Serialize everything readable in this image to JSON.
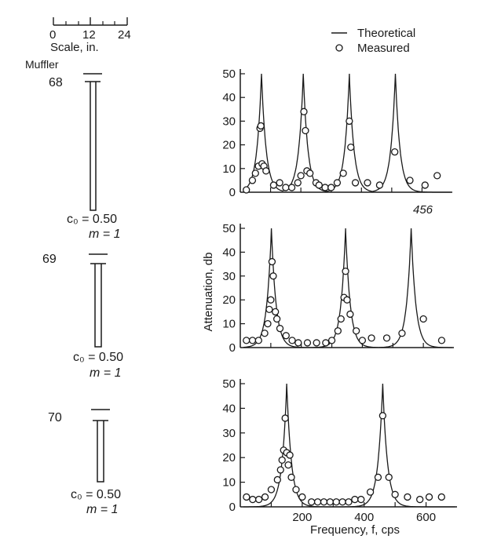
{
  "scale": {
    "ticks": [
      "0",
      "12",
      "24"
    ],
    "label": "Scale, in."
  },
  "muffler_heading": "Muffler",
  "legend": {
    "theoretical": "Theoretical",
    "measured": "Measured"
  },
  "annotation": "456",
  "mufflers": [
    {
      "id": "68",
      "c0": "c₀ = 0.50",
      "m": "m = 1"
    },
    {
      "id": "69",
      "c0": "c₀ = 0.50",
      "m": "m = 1"
    },
    {
      "id": "70",
      "c0": "c₀ = 0.50",
      "m": "m = 1"
    }
  ],
  "chart_data": [
    {
      "type": "line",
      "muffler": "68",
      "xlim": [
        0,
        700
      ],
      "ylim": [
        0,
        50
      ],
      "yticks": [
        "0",
        "10",
        "20",
        "30",
        "40",
        "50"
      ],
      "grid": false,
      "series": [
        {
          "name": "Theoretical",
          "kind": "line",
          "resonances": [
            [
              70,
              50
            ],
            [
              208,
              50
            ],
            [
              360,
              50
            ],
            [
              512,
              50
            ]
          ]
        },
        {
          "name": "Measured",
          "kind": "scatter",
          "points": [
            [
              20,
              1
            ],
            [
              40,
              5
            ],
            [
              50,
              8
            ],
            [
              60,
              11
            ],
            [
              65,
              27
            ],
            [
              68,
              28
            ],
            [
              72,
              12
            ],
            [
              78,
              11
            ],
            [
              85,
              9
            ],
            [
              110,
              3
            ],
            [
              130,
              4
            ],
            [
              150,
              2
            ],
            [
              170,
              2
            ],
            [
              190,
              4
            ],
            [
              200,
              7
            ],
            [
              210,
              34
            ],
            [
              215,
              26
            ],
            [
              220,
              9
            ],
            [
              230,
              8
            ],
            [
              250,
              4
            ],
            [
              260,
              3
            ],
            [
              280,
              2
            ],
            [
              300,
              2
            ],
            [
              320,
              4
            ],
            [
              340,
              8
            ],
            [
              360,
              30
            ],
            [
              365,
              19
            ],
            [
              380,
              4
            ],
            [
              420,
              4
            ],
            [
              460,
              3
            ],
            [
              510,
              17
            ],
            [
              560,
              5
            ],
            [
              610,
              3
            ],
            [
              650,
              7
            ]
          ]
        }
      ]
    },
    {
      "type": "line",
      "muffler": "69",
      "xlim": [
        0,
        700
      ],
      "ylim": [
        0,
        50
      ],
      "yticks": [
        "0",
        "10",
        "20",
        "30",
        "40",
        "50"
      ],
      "ylabel": "Attenuation, db",
      "grid": false,
      "series": [
        {
          "name": "Theoretical",
          "kind": "line",
          "resonances": [
            [
              102,
              50
            ],
            [
              345,
              50
            ],
            [
              560,
              50
            ]
          ]
        },
        {
          "name": "Measured",
          "kind": "scatter",
          "points": [
            [
              20,
              3
            ],
            [
              40,
              3
            ],
            [
              60,
              3
            ],
            [
              80,
              6
            ],
            [
              90,
              10
            ],
            [
              95,
              16
            ],
            [
              100,
              20
            ],
            [
              104,
              36
            ],
            [
              108,
              30
            ],
            [
              115,
              15
            ],
            [
              120,
              12
            ],
            [
              130,
              8
            ],
            [
              150,
              5
            ],
            [
              170,
              3
            ],
            [
              190,
              2
            ],
            [
              220,
              2
            ],
            [
              250,
              2
            ],
            [
              280,
              2
            ],
            [
              300,
              3
            ],
            [
              320,
              7
            ],
            [
              330,
              12
            ],
            [
              340,
              21
            ],
            [
              345,
              32
            ],
            [
              350,
              20
            ],
            [
              360,
              14
            ],
            [
              380,
              7
            ],
            [
              400,
              3
            ],
            [
              430,
              4
            ],
            [
              480,
              4
            ],
            [
              530,
              6
            ],
            [
              600,
              12
            ],
            [
              660,
              3
            ]
          ]
        }
      ]
    },
    {
      "type": "line",
      "muffler": "70",
      "xlim": [
        0,
        700
      ],
      "ylim": [
        0,
        50
      ],
      "yticks": [
        "0",
        "10",
        "20",
        "30",
        "40",
        "50"
      ],
      "xticks": [
        "200",
        "400",
        "600"
      ],
      "xlabel": "Frequency, f, cps",
      "grid": false,
      "series": [
        {
          "name": "Theoretical",
          "kind": "line",
          "resonances": [
            [
              150,
              50
            ],
            [
              460,
              50
            ]
          ]
        },
        {
          "name": "Measured",
          "kind": "scatter",
          "points": [
            [
              20,
              4
            ],
            [
              40,
              3
            ],
            [
              60,
              3
            ],
            [
              80,
              4
            ],
            [
              100,
              7
            ],
            [
              120,
              11
            ],
            [
              130,
              15
            ],
            [
              135,
              19
            ],
            [
              140,
              23
            ],
            [
              145,
              36
            ],
            [
              150,
              22
            ],
            [
              155,
              17
            ],
            [
              160,
              21
            ],
            [
              165,
              12
            ],
            [
              180,
              7
            ],
            [
              200,
              4
            ],
            [
              230,
              2
            ],
            [
              250,
              2
            ],
            [
              270,
              2
            ],
            [
              290,
              2
            ],
            [
              310,
              2
            ],
            [
              330,
              2
            ],
            [
              350,
              2
            ],
            [
              370,
              3
            ],
            [
              390,
              3
            ],
            [
              420,
              6
            ],
            [
              445,
              12
            ],
            [
              460,
              37
            ],
            [
              480,
              12
            ],
            [
              500,
              5
            ],
            [
              540,
              4
            ],
            [
              580,
              3
            ],
            [
              610,
              4
            ],
            [
              650,
              4
            ]
          ]
        }
      ]
    }
  ]
}
